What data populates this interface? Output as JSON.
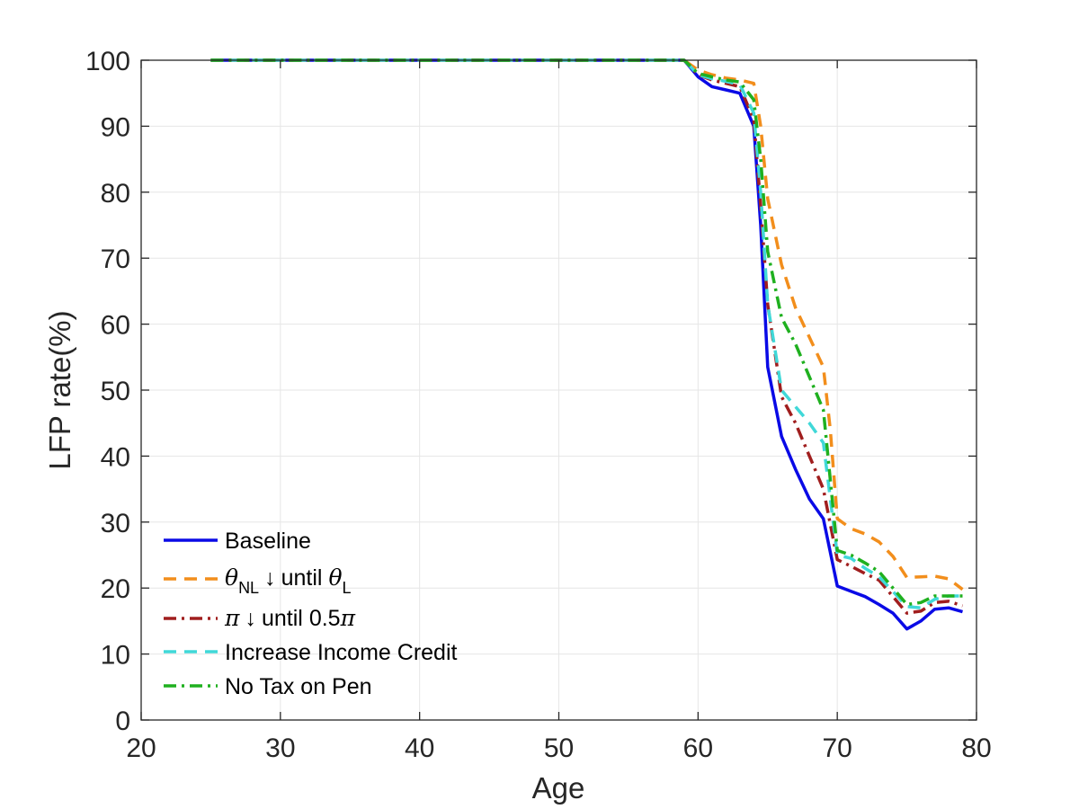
{
  "chart_data": {
    "type": "line",
    "title": "",
    "xlabel": "Age",
    "ylabel": "LFP rate(%)",
    "xlim": [
      20,
      80
    ],
    "ylim": [
      0,
      100
    ],
    "xticks": [
      20,
      30,
      40,
      50,
      60,
      70,
      80
    ],
    "yticks": [
      0,
      10,
      20,
      30,
      40,
      50,
      60,
      70,
      80,
      90,
      100
    ],
    "grid": true,
    "legend_position": "bottom-left",
    "legend": {
      "baseline": "Baseline",
      "theta_sym": "θ",
      "theta_nl_sub": "NL",
      "theta_l_sub": "L",
      "arrow": "↓",
      "until": "until",
      "pi_sym": "π",
      "pi_factor": "0.5",
      "income_credit": "Increase Income Credit",
      "no_tax": "No Tax on Pen"
    },
    "series": [
      {
        "key": "baseline",
        "name": "Baseline",
        "color": "#0a0ae6",
        "style": "solid",
        "x": [
          25,
          59,
          60,
          61,
          62,
          63,
          64,
          64.5,
          65,
          66,
          67,
          68,
          69,
          70,
          71,
          72,
          73,
          74,
          75,
          76,
          77,
          78,
          79
        ],
        "y": [
          100,
          100,
          97.5,
          96,
          95.5,
          95,
          90,
          75,
          53.5,
          43,
          38,
          33.5,
          30.5,
          20.3,
          19.5,
          18.7,
          17.5,
          16.2,
          13.8,
          15,
          16.8,
          17,
          16.4
        ]
      },
      {
        "key": "theta",
        "name": "θNL ↓ until θL",
        "color": "#f28e1c",
        "style": "dashed",
        "x": [
          25,
          59,
          60,
          61,
          62,
          63,
          64,
          64.5,
          65,
          66,
          67,
          68,
          69,
          69.5,
          70,
          71,
          72,
          73,
          74,
          75,
          76,
          77,
          78,
          79
        ],
        "y": [
          100,
          100,
          98.5,
          97.8,
          97.3,
          97,
          96.5,
          90,
          79,
          69,
          62.5,
          58,
          53.5,
          44,
          30.5,
          29,
          28.2,
          27,
          24.8,
          21.6,
          21.7,
          21.8,
          21.4,
          19.8
        ]
      },
      {
        "key": "pi",
        "name": "π ↓ until 0.5π",
        "color": "#a01e1e",
        "style": "dashdot",
        "x": [
          25,
          59,
          60,
          61,
          62,
          63,
          64,
          64.5,
          65,
          66,
          67,
          68,
          69,
          70,
          71,
          72,
          73,
          74,
          75,
          76,
          77,
          78,
          79
        ],
        "y": [
          100,
          100,
          97.8,
          97,
          96.5,
          96,
          91,
          78,
          63,
          49,
          45,
          40,
          35,
          24.3,
          23.3,
          22.2,
          21.2,
          18.7,
          16.2,
          16.5,
          17.8,
          18,
          17.3
        ]
      },
      {
        "key": "income",
        "name": "Increase Income Credit",
        "color": "#40d8d8",
        "style": "dashed",
        "x": [
          25,
          59,
          60,
          61,
          62,
          63,
          64,
          64.5,
          65,
          66,
          67,
          68,
          69,
          70,
          71,
          72,
          73,
          74,
          75,
          76,
          77,
          78,
          79
        ],
        "y": [
          100,
          100,
          97.8,
          97.2,
          96.8,
          96.3,
          92,
          80,
          63,
          50,
          47.5,
          45,
          42,
          25,
          24.5,
          23,
          21.7,
          19.5,
          17.2,
          17,
          18.3,
          18.8,
          18.8
        ]
      },
      {
        "key": "notax",
        "name": "No Tax on Pen",
        "color": "#1fb01f",
        "style": "dashdot",
        "x": [
          25,
          59,
          60,
          61,
          62,
          63,
          64,
          64.5,
          65,
          66,
          67,
          68,
          69,
          70,
          71,
          72,
          73,
          74,
          75,
          76,
          77,
          78,
          79
        ],
        "y": [
          100,
          100,
          98,
          97.5,
          97,
          96.7,
          94,
          85,
          71,
          61,
          57,
          52,
          47,
          25.7,
          25,
          23.8,
          22.5,
          20,
          17.5,
          17.8,
          18.8,
          18.8,
          18.8
        ]
      }
    ]
  }
}
